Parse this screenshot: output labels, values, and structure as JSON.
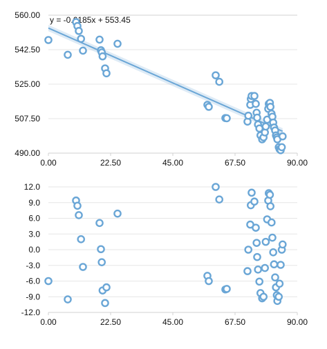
{
  "chart_data": [
    {
      "type": "scatter",
      "title": "",
      "xlabel": "",
      "ylabel": "",
      "xlim": [
        0,
        90
      ],
      "ylim": [
        490,
        560
      ],
      "x_ticks": [
        "0.00",
        "22.50",
        "45.00",
        "67.50",
        "90.00"
      ],
      "y_ticks": [
        "490.00",
        "507.50",
        "525.00",
        "542.50",
        "560.00"
      ],
      "grid": true,
      "fit_line": {
        "equation": "y = -0.6185x + 553.45",
        "slope": -0.6185,
        "intercept": 553.45
      },
      "points": [
        [
          0.0,
          547.4
        ],
        [
          7.0,
          539.9
        ],
        [
          10.0,
          556.5
        ],
        [
          10.5,
          554.5
        ],
        [
          11.0,
          552.0
        ],
        [
          11.8,
          548.0
        ],
        [
          12.5,
          542.0
        ],
        [
          18.5,
          547.6
        ],
        [
          19.0,
          542.2
        ],
        [
          19.3,
          541.1
        ],
        [
          19.6,
          539.1
        ],
        [
          20.5,
          533.0
        ],
        [
          21.0,
          530.5
        ],
        [
          25.0,
          545.5
        ],
        [
          57.5,
          514.5
        ],
        [
          58.0,
          513.5
        ],
        [
          60.5,
          529.5
        ],
        [
          61.8,
          526.2
        ],
        [
          64.0,
          507.8
        ],
        [
          64.5,
          507.7
        ],
        [
          72.0,
          506.0
        ],
        [
          72.3,
          509.0
        ],
        [
          73.0,
          514.5
        ],
        [
          73.2,
          517.5
        ],
        [
          73.5,
          519.0
        ],
        [
          74.5,
          519.0
        ],
        [
          75.0,
          515.0
        ],
        [
          75.3,
          510.5
        ],
        [
          75.5,
          508.0
        ],
        [
          75.8,
          504.5
        ],
        [
          76.3,
          502.5
        ],
        [
          76.7,
          499.0
        ],
        [
          77.3,
          497.0
        ],
        [
          77.8,
          498.0
        ],
        [
          78.3,
          500.5
        ],
        [
          78.6,
          503.5
        ],
        [
          79.1,
          507.0
        ],
        [
          79.5,
          512.5
        ],
        [
          79.7,
          515.0
        ],
        [
          80.1,
          515.5
        ],
        [
          80.3,
          513.5
        ],
        [
          80.7,
          510.0
        ],
        [
          81.0,
          508.5
        ],
        [
          81.3,
          505.5
        ],
        [
          81.6,
          503.0
        ],
        [
          82.0,
          501.5
        ],
        [
          82.3,
          499.0
        ],
        [
          82.6,
          498.0
        ],
        [
          82.8,
          497.0
        ],
        [
          83.3,
          493.0
        ],
        [
          83.6,
          492.0
        ],
        [
          84.0,
          491.5
        ],
        [
          84.4,
          493.0
        ],
        [
          84.7,
          498.5
        ]
      ]
    },
    {
      "type": "scatter",
      "title": "",
      "xlabel": "",
      "ylabel": "",
      "xlim": [
        0,
        90
      ],
      "ylim": [
        -12,
        12
      ],
      "x_ticks": [
        "0.00",
        "22.50",
        "45.00",
        "67.50",
        "90.00"
      ],
      "y_ticks": [
        "12.0",
        "9.0",
        "6.0",
        "3.0",
        "0.0",
        "-3.0",
        "-6.0",
        "-9.0",
        "-12.0"
      ],
      "grid": true,
      "points": [
        [
          0.0,
          -6.0
        ],
        [
          7.0,
          -9.5
        ],
        [
          10.0,
          9.4
        ],
        [
          10.5,
          8.4
        ],
        [
          11.0,
          6.6
        ],
        [
          11.8,
          2.0
        ],
        [
          12.5,
          -3.3
        ],
        [
          18.5,
          5.1
        ],
        [
          19.0,
          0.1
        ],
        [
          19.3,
          -2.4
        ],
        [
          19.6,
          -7.8
        ],
        [
          20.5,
          -10.2
        ],
        [
          21.0,
          -7.2
        ],
        [
          25.0,
          6.9
        ],
        [
          57.5,
          -5.0
        ],
        [
          58.0,
          -6.0
        ],
        [
          60.5,
          12.0
        ],
        [
          61.8,
          9.6
        ],
        [
          64.0,
          -7.6
        ],
        [
          64.5,
          -7.5
        ],
        [
          72.0,
          -4.1
        ],
        [
          72.3,
          0.0
        ],
        [
          73.0,
          4.8
        ],
        [
          73.2,
          8.5
        ],
        [
          73.5,
          10.9
        ],
        [
          74.5,
          9.2
        ],
        [
          75.0,
          4.2
        ],
        [
          75.3,
          1.3
        ],
        [
          75.5,
          -1.4
        ],
        [
          75.8,
          -3.8
        ],
        [
          76.3,
          -6.1
        ],
        [
          76.7,
          -8.3
        ],
        [
          77.3,
          -9.3
        ],
        [
          77.8,
          -9.0
        ],
        [
          78.3,
          -3.5
        ],
        [
          78.6,
          1.5
        ],
        [
          79.1,
          5.8
        ],
        [
          79.5,
          9.4
        ],
        [
          79.7,
          10.8
        ],
        [
          80.1,
          10.5
        ],
        [
          80.3,
          8.3
        ],
        [
          80.7,
          5.2
        ],
        [
          81.0,
          2.3
        ],
        [
          81.3,
          -0.5
        ],
        [
          81.6,
          -2.8
        ],
        [
          82.0,
          -5.3
        ],
        [
          82.3,
          -7.2
        ],
        [
          82.6,
          -8.7
        ],
        [
          82.8,
          -9.8
        ],
        [
          83.3,
          -9.0
        ],
        [
          83.6,
          -6.5
        ],
        [
          84.0,
          -2.9
        ],
        [
          84.4,
          0.0
        ],
        [
          84.7,
          1.0
        ]
      ]
    }
  ]
}
